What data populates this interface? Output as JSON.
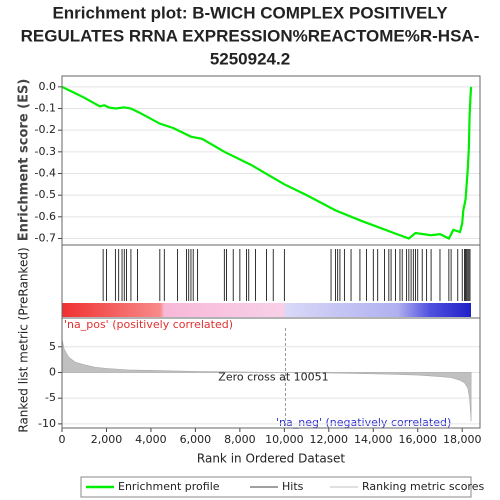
{
  "chart_data": [
    {
      "type": "line",
      "title": [
        "Enrichment plot: B-WICH COMPLEX POSITIVELY",
        "REGULATES RRNA EXPRESSION%REACTOME%R-HSA-",
        "5250924.2"
      ],
      "ylabel": "Enrichment score (ES)",
      "x": [
        0,
        500,
        1000,
        1700,
        1900,
        2100,
        2400,
        2800,
        3100,
        3500,
        4400,
        5000,
        5800,
        6300,
        7300,
        8500,
        10000,
        11000,
        12300,
        13500,
        14800,
        15600,
        15900,
        16600,
        17000,
        17400,
        17600,
        17900,
        18000,
        18050,
        18150,
        18200,
        18250,
        18300,
        18330,
        18370,
        18400
      ],
      "series": [
        {
          "name": "Enrichment profile",
          "color": "#00ee00",
          "values": [
            0,
            -0.025,
            -0.05,
            -0.09,
            -0.085,
            -0.095,
            -0.1,
            -0.095,
            -0.1,
            -0.12,
            -0.17,
            -0.19,
            -0.23,
            -0.24,
            -0.3,
            -0.36,
            -0.45,
            -0.5,
            -0.57,
            -0.62,
            -0.67,
            -0.7,
            -0.675,
            -0.685,
            -0.68,
            -0.7,
            -0.66,
            -0.67,
            -0.63,
            -0.57,
            -0.52,
            -0.45,
            -0.38,
            -0.28,
            -0.14,
            -0.05,
            0
          ]
        }
      ],
      "xlim": [
        0,
        18800
      ],
      "ylim": [
        -0.73,
        0.05
      ],
      "yticks": [
        {
          "value": 0,
          "label": "0.0"
        },
        {
          "value": -0.1,
          "label": "-0.1"
        },
        {
          "value": -0.2,
          "label": "-0.2"
        },
        {
          "value": -0.3,
          "label": "-0.3"
        },
        {
          "value": -0.4,
          "label": "-0.4"
        },
        {
          "value": -0.5,
          "label": "-0.5"
        },
        {
          "value": -0.6,
          "label": "-0.6"
        },
        {
          "value": -0.7,
          "label": "-0.7"
        }
      ],
      "grid": true
    },
    {
      "type": "hits",
      "series": [
        {
          "name": "Hits",
          "color": "#808080",
          "values": [
            1850,
            2000,
            2400,
            2550,
            2700,
            2800,
            2900,
            3100,
            3400,
            4400,
            4600,
            5200,
            5600,
            5700,
            5800,
            5900,
            6100,
            7300,
            7400,
            7700,
            8000,
            8300,
            8400,
            8700,
            9200,
            9500,
            10000,
            12100,
            12300,
            12400,
            12500,
            12700,
            13000,
            13400,
            13700,
            14000,
            14200,
            14500,
            14700,
            14800,
            15000,
            15200,
            15300,
            15500,
            15600,
            15700,
            15800,
            15900,
            16000,
            16200,
            16400,
            16600,
            17000,
            17400,
            17500,
            17800,
            18000,
            18100,
            18150,
            18200,
            18250,
            18300,
            18350
          ]
        }
      ],
      "xlim": [
        0,
        18800
      ]
    },
    {
      "type": "area",
      "ylabel": "Ranked list metric (PreRanked)",
      "xlabel": "Rank in Ordered Dataset",
      "x": [
        0,
        100,
        300,
        600,
        1000,
        1500,
        2000,
        3000,
        4500,
        6000,
        8000,
        10051,
        12000,
        14000,
        16000,
        17000,
        17500,
        17900,
        18100,
        18250,
        18330,
        18380,
        18400
      ],
      "series": [
        {
          "name": "Ranking metric scores",
          "color": "#c0c0c0",
          "values": [
            6.5,
            4.5,
            3,
            2,
            1.5,
            1,
            0.8,
            0.5,
            0.35,
            0.2,
            0.1,
            0,
            -0.1,
            -0.25,
            -0.5,
            -0.8,
            -1,
            -1.5,
            -2,
            -3,
            -5,
            -8,
            -9.5
          ]
        }
      ],
      "xlim": [
        0,
        18800
      ],
      "ylim": [
        -10.8,
        10.6
      ],
      "xticks": [
        0,
        {
          "value": 2000,
          "label": "2,000"
        },
        {
          "value": 4000,
          "label": "4,000"
        },
        {
          "value": 6000,
          "label": "6,000"
        },
        {
          "value": 8000,
          "label": "8,000"
        },
        {
          "value": 10000,
          "label": "10,000"
        },
        {
          "value": 12000,
          "label": "12,000"
        },
        {
          "value": 14000,
          "label": "14,000"
        },
        {
          "value": 16000,
          "label": "16,000"
        },
        {
          "value": 18000,
          "label": "18,000"
        }
      ],
      "yticks": [
        5,
        0,
        -5,
        -10
      ],
      "zero_cross": 10051,
      "annotations": [
        "Zero cross at 10051",
        "'na_pos' (positively correlated)",
        "'na_neg' (negatively correlated)"
      ],
      "grid": true
    }
  ]
}
